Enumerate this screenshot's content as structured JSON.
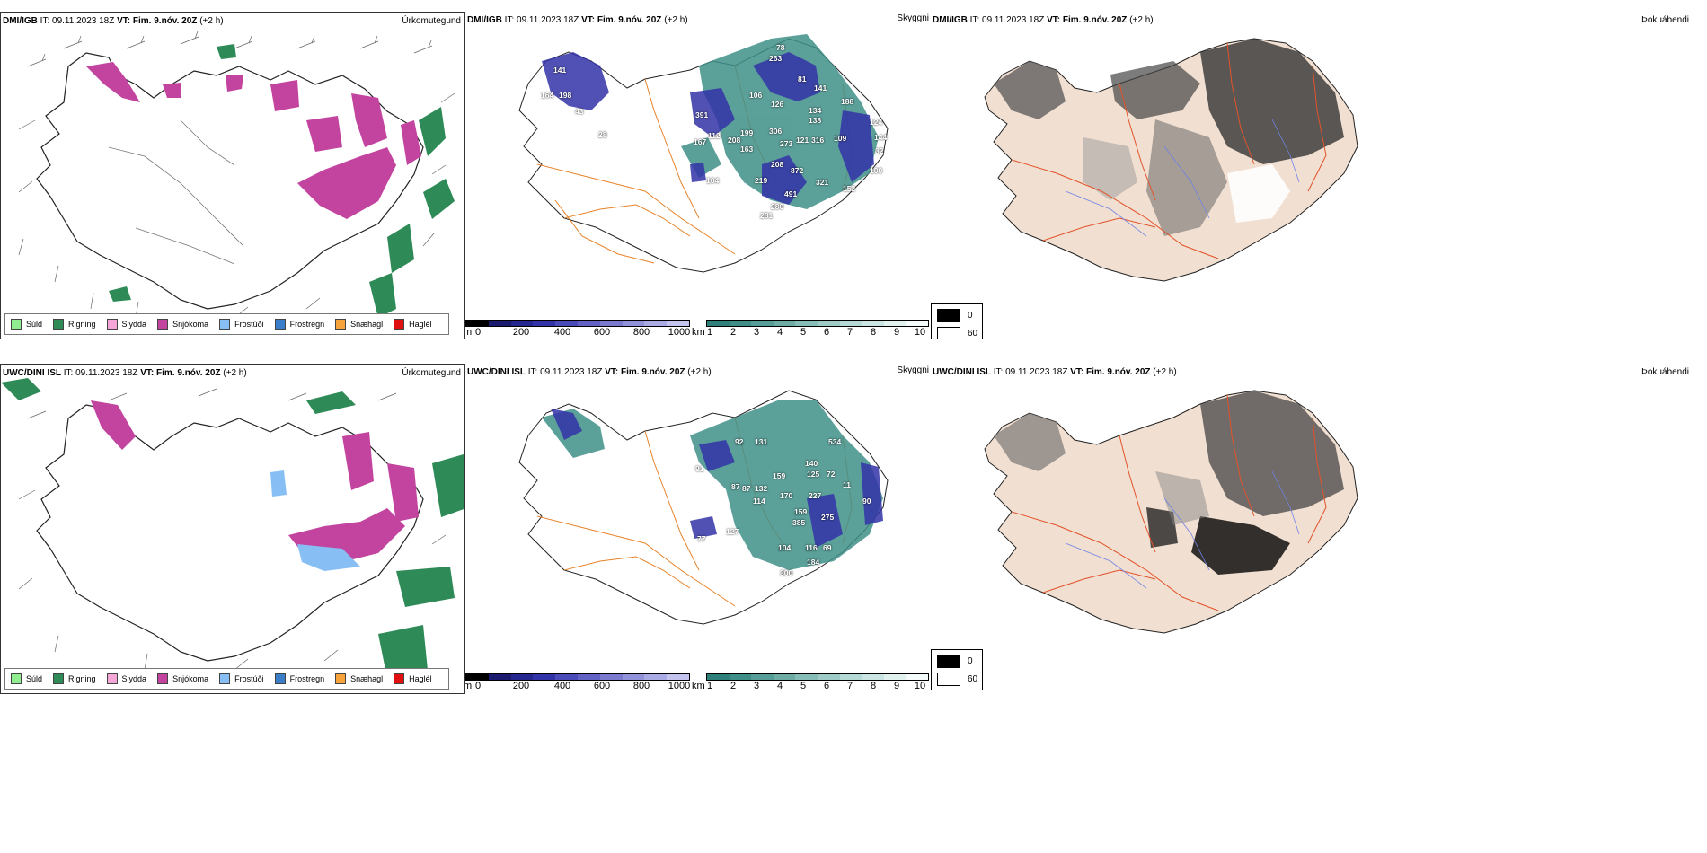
{
  "top": {
    "model": "DMI/IGB",
    "it_label": "IT:",
    "it_value": "09.11.2023 18Z",
    "vt_label": "VT:",
    "vt_value": "Fim. 9.nóv. 20Z",
    "lead": "(+2 h)",
    "precip_title": "Úrkomutegund",
    "vis_title": "Skyggni",
    "fog_title": "Þokuábendi"
  },
  "bottom": {
    "model": "UWC/DINI ISL",
    "it_label": "IT:",
    "it_value": "09.11.2023 18Z",
    "vt_label": "VT:",
    "vt_value": "Fim. 9.nóv. 20Z",
    "lead": "(+2 h)",
    "precip_title": "Úrkomutegund",
    "vis_title": "Skyggni",
    "fog_title": "Þokuábendi"
  },
  "precip_legend": [
    {
      "label": "Súld",
      "color": "#90ee90"
    },
    {
      "label": "Rigning",
      "color": "#2e8b57"
    },
    {
      "label": "Slydda",
      "color": "#f4a6d7"
    },
    {
      "label": "Snjókoma",
      "color": "#c2449f"
    },
    {
      "label": "Frostúði",
      "color": "#87bff5"
    },
    {
      "label": "Frostregn",
      "color": "#3a7dc9"
    },
    {
      "label": "Snæhagl",
      "color": "#f5a33a"
    },
    {
      "label": "Haglél",
      "color": "#e01010"
    }
  ],
  "ceiling_scale": {
    "unit": "m",
    "ticks": [
      "0",
      "200",
      "400",
      "600",
      "800",
      "1000"
    ],
    "colors": [
      "#000000",
      "#1a1a6e",
      "#26268f",
      "#3333a8",
      "#4a4ab8",
      "#6262c4",
      "#7a7acf",
      "#9292da",
      "#aaaae4",
      "#c4c4ee"
    ]
  },
  "visibility_scale": {
    "unit": "km",
    "ticks": [
      "1",
      "2",
      "3",
      "4",
      "5",
      "6",
      "7",
      "8",
      "9",
      "10"
    ],
    "colors": [
      "#2f7f7a",
      "#3f8f88",
      "#569e97",
      "#6dada6",
      "#86bdb6",
      "#9ecbc5",
      "#b5d9d4",
      "#cbe6e2",
      "#e1f2ef",
      "#f4fbfa"
    ]
  },
  "fog_legend": [
    {
      "label": "0",
      "color": "#000000"
    },
    {
      "label": "60",
      "color": "#ffffff"
    }
  ],
  "ceiling_labels_top": [
    "78",
    "263",
    "81",
    "141",
    "141",
    "198",
    "106",
    "126",
    "188",
    "134",
    "138",
    "124",
    "391",
    "112",
    "121",
    "316",
    "109",
    "208",
    "199",
    "163",
    "273",
    "144",
    "306",
    "208",
    "872",
    "100",
    "104",
    "219",
    "321",
    "152",
    "491",
    "280",
    "281",
    "43",
    "164",
    "28",
    "32",
    "167"
  ],
  "ceiling_labels_bottom": [
    "131",
    "92",
    "159",
    "140",
    "125",
    "72",
    "91",
    "87",
    "87",
    "132",
    "114",
    "170",
    "227",
    "90",
    "77",
    "127",
    "159",
    "385",
    "275",
    "104",
    "116",
    "69",
    "300",
    "184",
    "11",
    "534"
  ]
}
